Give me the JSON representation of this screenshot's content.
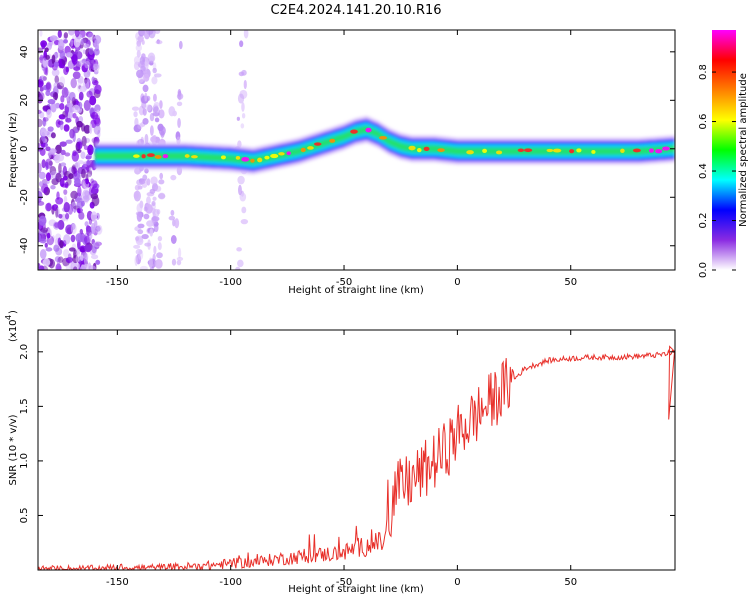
{
  "figure": {
    "title": "C2E4.2024.141.20.10.R16"
  },
  "chart_data": [
    {
      "type": "heatmap",
      "description_kind": "spectrogram",
      "xlabel": "Height of straight line (km)",
      "ylabel": "Frequency (Hz)",
      "xlim": [
        -185,
        96
      ],
      "ylim": [
        -50,
        49
      ],
      "xticks": [
        -150,
        -100,
        -50,
        0,
        50
      ],
      "yticks": [
        -40,
        -20,
        0,
        20,
        40
      ],
      "colorbar": {
        "label": "Normalized spectral amplitude",
        "range": [
          0,
          0.97
        ],
        "ticks": [
          0.0,
          0.2,
          0.4,
          0.6,
          0.8
        ],
        "tick_labels": [
          "0.0",
          "0.2",
          "0.4",
          "0.6",
          "0.8"
        ],
        "colors": [
          "#ffffff",
          "#8a2be2",
          "#0000ff",
          "#00ffff",
          "#00ff00",
          "#ffff00",
          "#ff7f00",
          "#ff0000",
          "#ff00ff"
        ]
      },
      "ridge": {
        "x": [
          -160,
          -150,
          -140,
          -120,
          -100,
          -90,
          -80,
          -70,
          -60,
          -50,
          -45,
          -40,
          -35,
          -30,
          -25,
          -20,
          -10,
          0,
          10,
          20,
          40,
          60,
          80,
          96
        ],
        "y": [
          -3,
          -3,
          -3,
          -3,
          -4,
          -5,
          -3,
          -1,
          2,
          5,
          7,
          8,
          6,
          3,
          1,
          0,
          0,
          -1,
          -1,
          -1,
          -1,
          -1,
          -1,
          0
        ]
      },
      "grid": false,
      "legend": "colorbar right"
    },
    {
      "type": "line",
      "xlabel": "Height of straight line (km)",
      "ylabel": "SNR (10 * v/v)",
      "y_scale_note": "(x10",
      "y_scale_exponent": "4",
      "y_scale_close": ")",
      "xlim": [
        -185,
        96
      ],
      "ylim": [
        0,
        2.2
      ],
      "xticks": [
        -150,
        -100,
        -50,
        0,
        50
      ],
      "yticks": [
        0.5,
        1.0,
        1.5,
        2.0
      ],
      "ytick_labels": [
        "0.5",
        "1.0",
        "1.5",
        "2.0"
      ],
      "series": [
        {
          "color": "#e8302a",
          "x": [
            -185,
            -170,
            -160,
            -150,
            -140,
            -130,
            -120,
            -110,
            -100,
            -90,
            -80,
            -70,
            -60,
            -50,
            -45,
            -40,
            -35,
            -32,
            -28,
            -25,
            -20,
            -15,
            -10,
            -5,
            0,
            5,
            10,
            15,
            20,
            25,
            30,
            40,
            50,
            60,
            70,
            80,
            88,
            92,
            96
          ],
          "y": [
            0.01,
            0.01,
            0.01,
            0.02,
            0.02,
            0.02,
            0.03,
            0.04,
            0.06,
            0.07,
            0.1,
            0.12,
            0.14,
            0.16,
            0.2,
            0.22,
            0.24,
            0.27,
            0.7,
            0.75,
            0.82,
            0.9,
            1.0,
            1.1,
            1.25,
            1.35,
            1.45,
            1.55,
            1.65,
            1.75,
            1.85,
            1.92,
            1.94,
            1.95,
            1.95,
            1.96,
            1.97,
            1.98,
            2.0
          ]
        }
      ],
      "grid": false,
      "legend": "none"
    }
  ]
}
